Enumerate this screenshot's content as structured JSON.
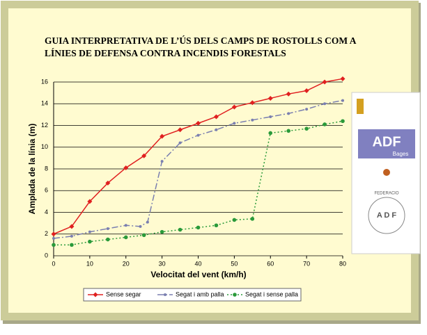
{
  "chart_data": {
    "type": "line",
    "title": [
      "GUIA INTERPRETATIVA DE L’ÚS DELS CAMPS DE ROSTOLLS COM A",
      "LÍNIES DE DEFENSA CONTRA INCENDIS FORESTALS"
    ],
    "x_label": "Velocitat del vent (km/h)",
    "y_label": "Amplada de la línia (m)",
    "xlim": [
      0,
      80
    ],
    "xticks": [
      0,
      10,
      20,
      30,
      40,
      50,
      60,
      70,
      80
    ],
    "ylim": [
      0,
      16
    ],
    "yticks": [
      0,
      2,
      4,
      6,
      8,
      10,
      12,
      14,
      16
    ],
    "grid": true,
    "series": [
      {
        "name": "Sense segar",
        "color": "#e02020",
        "x": [
          0,
          5,
          10,
          15,
          20,
          25,
          30,
          35,
          40,
          45,
          50,
          55,
          60,
          65,
          70,
          75,
          80
        ],
        "values": [
          2.0,
          2.7,
          5.0,
          6.7,
          8.1,
          9.2,
          11.0,
          11.6,
          12.2,
          12.8,
          13.7,
          14.1,
          14.5,
          14.9,
          15.2,
          16.0,
          16.3
        ]
      },
      {
        "name": "Segat i amb palla",
        "color": "#7a7fb0",
        "x": [
          0,
          5,
          10,
          15,
          20,
          24,
          26,
          30,
          35,
          40,
          45,
          50,
          55,
          60,
          65,
          70,
          75,
          80
        ],
        "values": [
          1.6,
          1.8,
          2.2,
          2.5,
          2.8,
          2.7,
          3.1,
          8.7,
          10.4,
          11.1,
          11.6,
          12.2,
          12.5,
          12.8,
          13.1,
          13.5,
          14.0,
          14.3
        ]
      },
      {
        "name": "Segat i sense palla",
        "color": "#2a9a3a",
        "x": [
          0,
          5,
          10,
          15,
          20,
          25,
          30,
          35,
          40,
          45,
          50,
          55,
          60,
          65,
          70,
          75,
          80
        ],
        "values": [
          1.0,
          1.0,
          1.3,
          1.5,
          1.7,
          1.9,
          2.2,
          2.4,
          2.6,
          2.8,
          3.3,
          3.4,
          11.3,
          11.5,
          11.7,
          12.1,
          12.4
        ]
      }
    ]
  },
  "logos": [
    "ADF",
    "Bages",
    "A D F",
    "FEDERACIO"
  ]
}
